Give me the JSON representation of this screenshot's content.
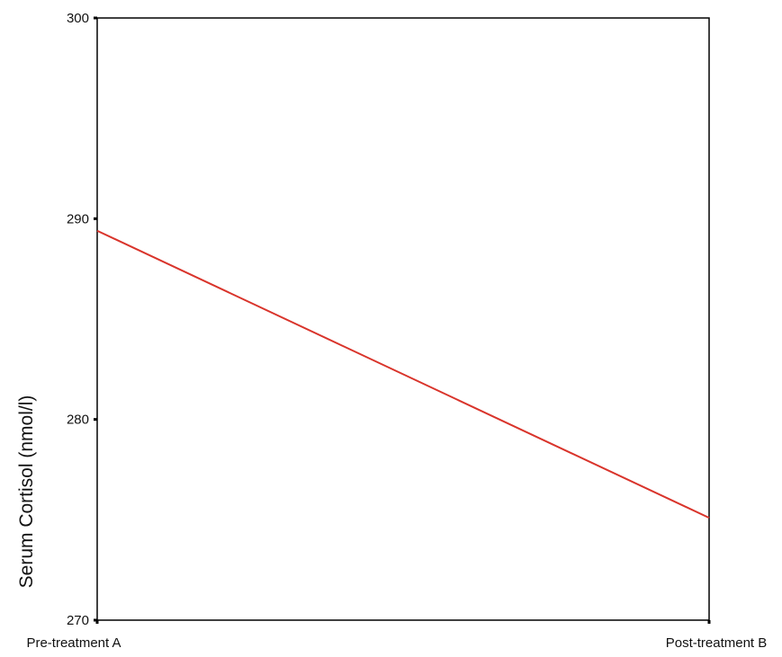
{
  "chart_data": {
    "type": "line",
    "title": "",
    "xlabel": "",
    "ylabel": "Serum Cortisol (nmol/l)",
    "categories": [
      "Pre-treatment A",
      "Post-treatment B"
    ],
    "series": [
      {
        "values": [
          289.4,
          275.1
        ],
        "color": "#d9342b"
      }
    ],
    "ylim": [
      270,
      300
    ],
    "yticks": [
      270,
      280,
      290,
      300
    ],
    "ytick_labels": [
      "270",
      "280",
      "290",
      "300"
    ],
    "grid": false,
    "legend": "none",
    "frame_color": "#000000"
  }
}
